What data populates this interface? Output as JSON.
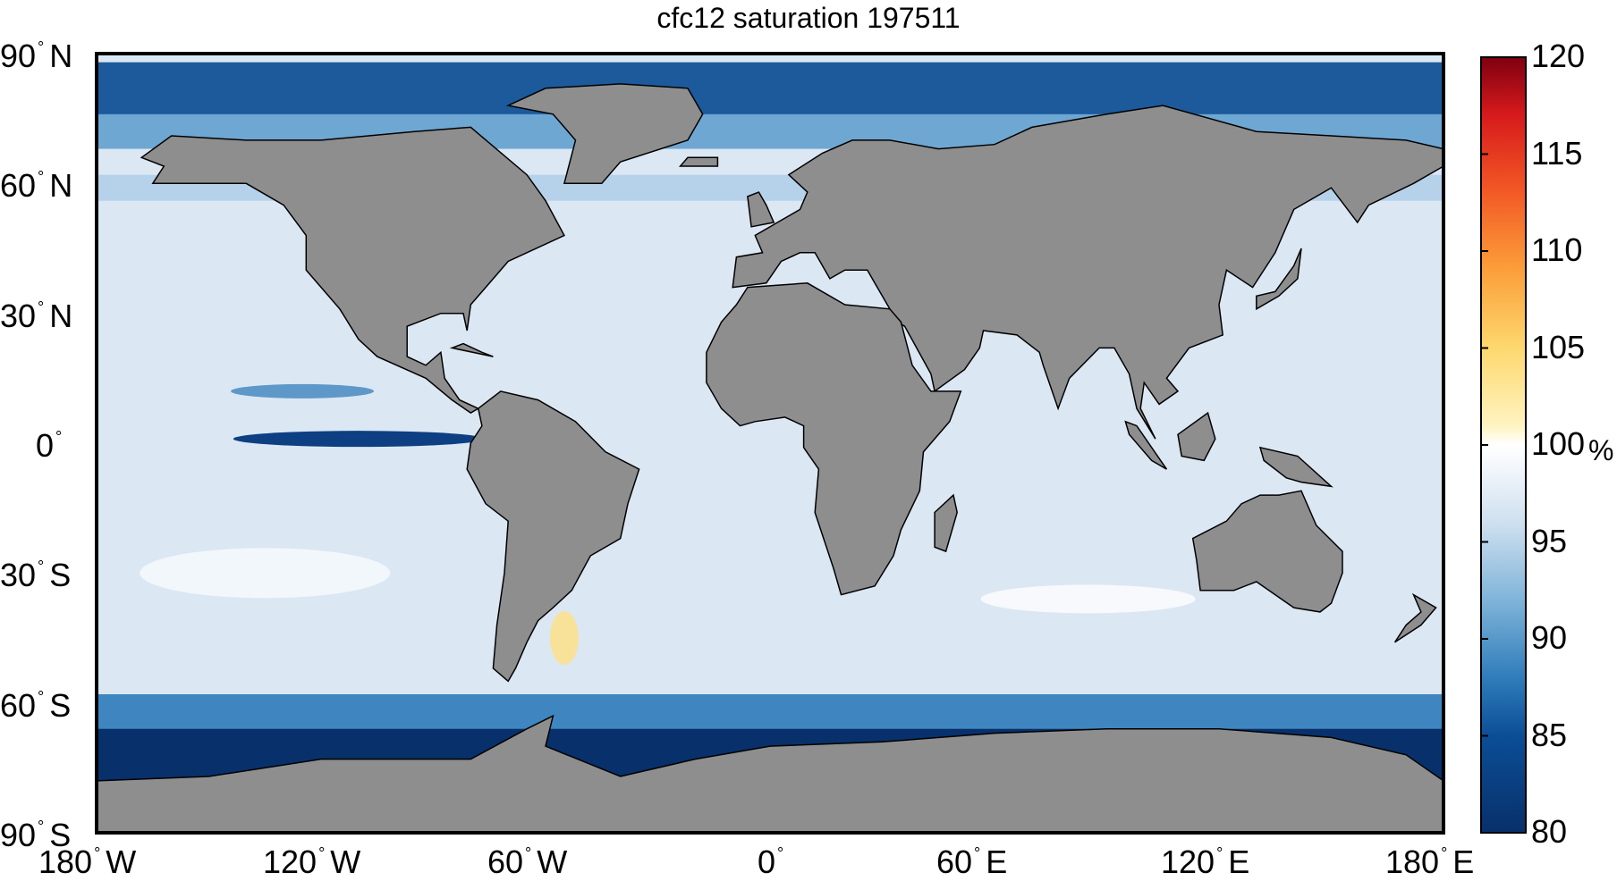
{
  "title": "cfc12 saturation 197511",
  "map": {
    "x_ticks": [
      {
        "value": "180",
        "hemi": "W"
      },
      {
        "value": "120",
        "hemi": "W"
      },
      {
        "value": "60",
        "hemi": "W"
      },
      {
        "value": "0",
        "hemi": ""
      },
      {
        "value": "60",
        "hemi": "E"
      },
      {
        "value": "120",
        "hemi": "E"
      },
      {
        "value": "180",
        "hemi": "E"
      }
    ],
    "y_ticks": [
      {
        "value": "90",
        "hemi": "N"
      },
      {
        "value": "60",
        "hemi": "N"
      },
      {
        "value": "30",
        "hemi": "N"
      },
      {
        "value": "0",
        "hemi": ""
      },
      {
        "value": "30",
        "hemi": "S"
      },
      {
        "value": "60",
        "hemi": "S"
      },
      {
        "value": "90",
        "hemi": "S"
      }
    ],
    "land_color": "#8e8e8e",
    "ocean_base_color": "#dbe7f3"
  },
  "colorbar": {
    "ticks": [
      "120",
      "115",
      "110",
      "105",
      "100",
      "95",
      "90",
      "85",
      "80"
    ],
    "unit": "%",
    "min": 80,
    "max": 120,
    "stops": [
      {
        "v": 80,
        "c": "#08306b"
      },
      {
        "v": 85,
        "c": "#0b4e96"
      },
      {
        "v": 88,
        "c": "#2f7dbb"
      },
      {
        "v": 92,
        "c": "#7fb4d9"
      },
      {
        "v": 96,
        "c": "#cfe0f0"
      },
      {
        "v": 99,
        "c": "#f4f8fc"
      },
      {
        "v": 100,
        "c": "#ffffff"
      },
      {
        "v": 101,
        "c": "#fff3c0"
      },
      {
        "v": 105,
        "c": "#fdd86e"
      },
      {
        "v": 109,
        "c": "#fc9f3a"
      },
      {
        "v": 113,
        "c": "#f35a25"
      },
      {
        "v": 117,
        "c": "#d71a1c"
      },
      {
        "v": 120,
        "c": "#7f0010"
      }
    ]
  }
}
